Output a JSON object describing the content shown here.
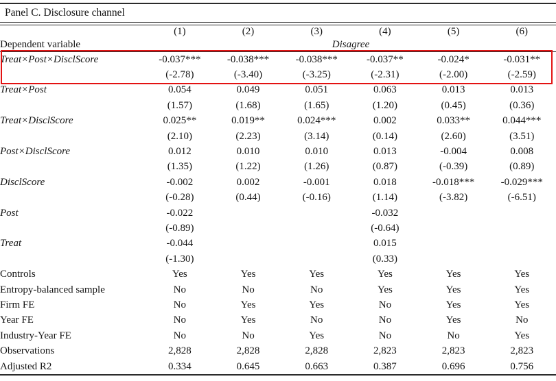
{
  "panel_title": "Panel C. Disclosure channel",
  "columns": [
    "(1)",
    "(2)",
    "(3)",
    "(4)",
    "(5)",
    "(6)"
  ],
  "dependent_variable_label": "Dependent variable",
  "dependent_variable_value": "Disagree",
  "highlight_color": "#e31212",
  "coefficient_rows": [
    {
      "label": "Treat×Post×DisclScore",
      "highlighted": true,
      "coefs": [
        "-0.037***",
        "-0.038***",
        "-0.038***",
        "-0.037**",
        "-0.024*",
        "-0.031**"
      ],
      "tstats": [
        "(-2.78)",
        "(-3.40)",
        "(-3.25)",
        "(-2.31)",
        "(-2.00)",
        "(-2.59)"
      ]
    },
    {
      "label": "Treat×Post",
      "highlighted": false,
      "coefs": [
        "0.054",
        "0.049",
        "0.051",
        "0.063",
        "0.013",
        "0.013"
      ],
      "tstats": [
        "(1.57)",
        "(1.68)",
        "(1.65)",
        "(1.20)",
        "(0.45)",
        "(0.36)"
      ]
    },
    {
      "label": "Treat×DisclScore",
      "highlighted": false,
      "coefs": [
        "0.025**",
        "0.019**",
        "0.024***",
        "0.002",
        "0.033**",
        "0.044***"
      ],
      "tstats": [
        "(2.10)",
        "(2.23)",
        "(3.14)",
        "(0.14)",
        "(2.60)",
        "(3.51)"
      ]
    },
    {
      "label": "Post×DisclScore",
      "highlighted": false,
      "coefs": [
        "0.012",
        "0.010",
        "0.010",
        "0.013",
        "-0.004",
        "0.008"
      ],
      "tstats": [
        "(1.35)",
        "(1.22)",
        "(1.26)",
        "(0.87)",
        "(-0.39)",
        "(0.89)"
      ]
    },
    {
      "label": "DisclScore",
      "highlighted": false,
      "coefs": [
        "-0.002",
        "0.002",
        "-0.001",
        "0.018",
        "-0.018***",
        "-0.029***"
      ],
      "tstats": [
        "(-0.28)",
        "(0.44)",
        "(-0.16)",
        "(1.14)",
        "(-3.82)",
        "(-6.51)"
      ]
    },
    {
      "label": "Post",
      "highlighted": false,
      "coefs": [
        "-0.022",
        "",
        "",
        "-0.032",
        "",
        ""
      ],
      "tstats": [
        "(-0.89)",
        "",
        "",
        "(-0.64)",
        "",
        ""
      ]
    },
    {
      "label": "Treat",
      "highlighted": false,
      "coefs": [
        "-0.044",
        "",
        "",
        "0.015",
        "",
        ""
      ],
      "tstats": [
        "(-1.30)",
        "",
        "",
        "(0.33)",
        "",
        ""
      ]
    }
  ],
  "summary_rows": [
    {
      "label": "Controls",
      "values": [
        "Yes",
        "Yes",
        "Yes",
        "Yes",
        "Yes",
        "Yes"
      ]
    },
    {
      "label": "Entropy-balanced sample",
      "values": [
        "No",
        "No",
        "No",
        "Yes",
        "Yes",
        "Yes"
      ]
    },
    {
      "label": "Firm FE",
      "values": [
        "No",
        "Yes",
        "Yes",
        "No",
        "Yes",
        "Yes"
      ]
    },
    {
      "label": "Year FE",
      "values": [
        "No",
        "Yes",
        "No",
        "No",
        "Yes",
        "No"
      ]
    },
    {
      "label": "Industry-Year FE",
      "values": [
        "No",
        "No",
        "Yes",
        "No",
        "No",
        "Yes"
      ]
    },
    {
      "label": "Observations",
      "values": [
        "2,828",
        "2,828",
        "2,828",
        "2,823",
        "2,823",
        "2,823"
      ]
    },
    {
      "label": "Adjusted R2",
      "values": [
        "0.334",
        "0.645",
        "0.663",
        "0.387",
        "0.696",
        "0.756"
      ]
    }
  ]
}
